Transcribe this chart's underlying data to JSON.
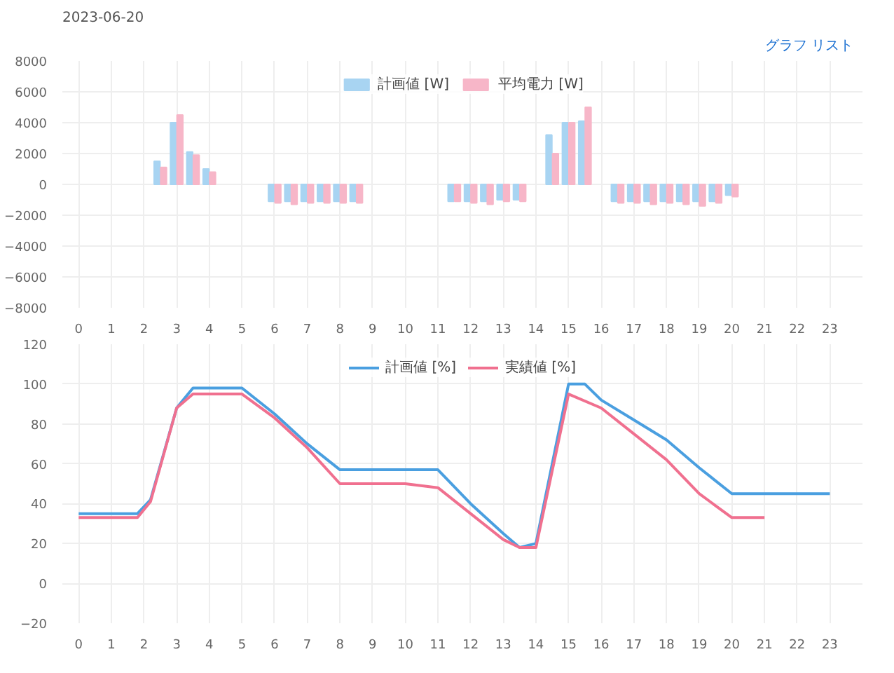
{
  "chart_data": [
    {
      "type": "bar",
      "title": "2023-06-20",
      "annotations": [
        "グラフ",
        "リスト"
      ],
      "legend": "top",
      "grid": true,
      "x": [
        2.5,
        3,
        3.5,
        4,
        6,
        6.5,
        7,
        7.5,
        8,
        8.5,
        11.5,
        12,
        12.5,
        13,
        13.5,
        14.5,
        15,
        15.5,
        16.5,
        17,
        17.5,
        18,
        18.5,
        19,
        19.5,
        20
      ],
      "xlim": [
        -0.5,
        24
      ],
      "xticks": [
        0,
        1,
        2,
        3,
        4,
        5,
        6,
        7,
        8,
        9,
        10,
        11,
        12,
        13,
        14,
        15,
        16,
        17,
        18,
        19,
        20,
        21,
        22,
        23
      ],
      "ylim": [
        -8000,
        8000
      ],
      "yticks": [
        -8000,
        -6000,
        -4000,
        -2000,
        0,
        2000,
        4000,
        6000,
        8000
      ],
      "series": [
        {
          "name": "計画値 [W]",
          "color": "#a8d4f2",
          "values": [
            1500,
            4000,
            2100,
            1000,
            -1100,
            -1100,
            -1100,
            -1100,
            -1100,
            -1100,
            -1100,
            -1100,
            -1100,
            -1000,
            -1000,
            3200,
            4000,
            4100,
            -1100,
            -1100,
            -1100,
            -1100,
            -1100,
            -1100,
            -1100,
            -700
          ]
        },
        {
          "name": "平均電力 [W]",
          "color": "#f7b6c8",
          "values": [
            1100,
            4500,
            1900,
            800,
            -1200,
            -1300,
            -1200,
            -1200,
            -1200,
            -1200,
            -1100,
            -1200,
            -1300,
            -1100,
            -1100,
            2000,
            4000,
            5000,
            -1200,
            -1200,
            -1300,
            -1200,
            -1300,
            -1400,
            -1200,
            -800
          ]
        }
      ]
    },
    {
      "type": "line",
      "legend": "top",
      "grid": true,
      "xlim": [
        -0.5,
        24
      ],
      "xticks": [
        0,
        1,
        2,
        3,
        4,
        5,
        6,
        7,
        8,
        9,
        10,
        11,
        12,
        13,
        14,
        15,
        16,
        17,
        18,
        19,
        20,
        21,
        22,
        23
      ],
      "ylim": [
        -20,
        120
      ],
      "yticks": [
        -20,
        0,
        20,
        40,
        60,
        80,
        100,
        120
      ],
      "series": [
        {
          "name": "計画値 [%]",
          "color": "#4a9fe0",
          "x": [
            0,
            1,
            1.8,
            2.2,
            3,
            3.5,
            4,
            5,
            6,
            7,
            8,
            9,
            10,
            11,
            12,
            13,
            13.5,
            14,
            15,
            15.5,
            16,
            17,
            18,
            19,
            20,
            21,
            22,
            23
          ],
          "values": [
            35,
            35,
            35,
            42,
            88,
            98,
            98,
            98,
            85,
            70,
            57,
            57,
            57,
            57,
            40,
            25,
            18,
            20,
            100,
            100,
            92,
            82,
            72,
            58,
            45,
            45,
            45,
            45
          ]
        },
        {
          "name": "実績値 [%]",
          "color": "#f0708f",
          "x": [
            0,
            1,
            1.8,
            2.2,
            3,
            3.5,
            4,
            5,
            6,
            7,
            8,
            9,
            10,
            11,
            12,
            13,
            13.5,
            14,
            15,
            16,
            17,
            18,
            19,
            20,
            21
          ],
          "values": [
            33,
            33,
            33,
            41,
            88,
            95,
            95,
            95,
            83,
            68,
            50,
            50,
            50,
            48,
            35,
            22,
            18,
            18,
            95,
            88,
            75,
            62,
            45,
            33,
            33
          ]
        }
      ]
    }
  ]
}
